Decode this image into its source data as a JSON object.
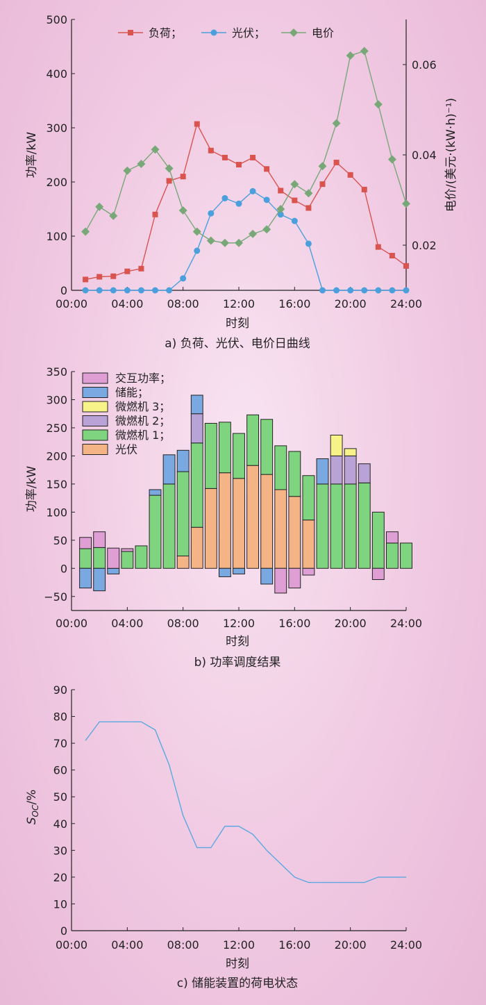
{
  "chart_data": [
    {
      "type": "line",
      "caption": "a) 负荷、光伏、电价日曲线",
      "xlabel": "时刻",
      "ylabel_left": "功率/kW",
      "ylabel_right": "电价/(美元·(kW·h)⁻¹)",
      "x_ticks": [
        "00:00",
        "04:00",
        "08:00",
        "12:00",
        "16:00",
        "20:00",
        "24:00"
      ],
      "y_ticks": [
        "0",
        "100",
        "200",
        "300",
        "400",
        "500"
      ],
      "y2_ticks": [
        "0.02",
        "0.04",
        "0.06"
      ],
      "ylim": [
        0,
        500
      ],
      "y2lim": [
        0.01,
        0.07
      ],
      "legend_position": "top",
      "hours": [
        1,
        2,
        3,
        4,
        5,
        6,
        7,
        8,
        9,
        10,
        11,
        12,
        13,
        14,
        15,
        16,
        17,
        18,
        19,
        20,
        21,
        22,
        23,
        24
      ],
      "series": [
        {
          "name": "负荷；",
          "axis": "left",
          "color": "#d9534f",
          "marker": "square",
          "values": [
            20,
            25,
            26,
            35,
            40,
            140,
            202,
            210,
            307,
            258,
            245,
            232,
            245,
            224,
            184,
            166,
            152,
            196,
            236,
            213,
            186,
            80,
            64,
            45
          ]
        },
        {
          "name": "光伏；",
          "axis": "left",
          "color": "#4a9fdc",
          "marker": "circle",
          "values": [
            0,
            0,
            0,
            0,
            0,
            0,
            0,
            22,
            73,
            142,
            170,
            160,
            183,
            167,
            140,
            128,
            86,
            0,
            0,
            0,
            0,
            0,
            0,
            0
          ]
        },
        {
          "name": "电价",
          "axis": "right",
          "color": "#78a878",
          "marker": "diamond",
          "values": [
            0.023,
            0.0285,
            0.0265,
            0.0365,
            0.038,
            0.0412,
            0.037,
            0.0277,
            0.023,
            0.021,
            0.0205,
            0.0205,
            0.0225,
            0.0235,
            0.028,
            0.0335,
            0.0315,
            0.0375,
            0.047,
            0.062,
            0.063,
            0.0512,
            0.039,
            0.0292
          ]
        }
      ]
    },
    {
      "type": "bar",
      "stacked": true,
      "caption": "b) 功率调度结果",
      "xlabel": "时刻",
      "ylabel": "功率/kW",
      "x_ticks": [
        "00:00",
        "04:00",
        "08:00",
        "12:00",
        "16:00",
        "20:00",
        "24:00"
      ],
      "y_ticks": [
        "−50",
        "0",
        "50",
        "100",
        "150",
        "200",
        "250",
        "300",
        "350"
      ],
      "ylim": [
        -75,
        350
      ],
      "legend_position": "top-left",
      "hours": [
        1,
        2,
        3,
        4,
        5,
        6,
        7,
        8,
        9,
        10,
        11,
        12,
        13,
        14,
        15,
        16,
        17,
        18,
        19,
        20,
        21,
        22,
        23,
        24
      ],
      "series": [
        {
          "name": "光伏",
          "color": "#f5b486",
          "values": [
            0,
            0,
            0,
            0,
            0,
            0,
            0,
            22,
            73,
            142,
            170,
            160,
            183,
            167,
            140,
            128,
            86,
            0,
            0,
            0,
            0,
            0,
            0,
            0
          ]
        },
        {
          "name": "微燃机 1；",
          "color": "#7fd47f",
          "values": [
            35,
            37,
            0,
            30,
            40,
            130,
            150,
            150,
            150,
            116,
            90,
            80,
            90,
            98,
            78,
            80,
            79,
            150,
            150,
            150,
            152,
            100,
            45,
            45
          ]
        },
        {
          "name": "微燃机 2；",
          "color": "#b9a2d6",
          "values": [
            0,
            0,
            0,
            0,
            0,
            0,
            0,
            0,
            52,
            0,
            0,
            0,
            0,
            0,
            0,
            0,
            0,
            0,
            50,
            50,
            34,
            0,
            0,
            0
          ]
        },
        {
          "name": "微燃机 3；",
          "color": "#f7f389",
          "values": [
            0,
            0,
            0,
            0,
            0,
            0,
            0,
            0,
            0,
            0,
            0,
            0,
            0,
            0,
            0,
            0,
            0,
            0,
            37,
            13,
            0,
            0,
            0,
            0
          ]
        },
        {
          "name": "储能；",
          "color": "#7aa8e0",
          "values": [
            -35,
            -40,
            -10,
            0,
            0,
            10,
            52,
            38,
            33,
            0,
            -15,
            -10,
            0,
            -28,
            0,
            0,
            0,
            45,
            0,
            0,
            0,
            0,
            0,
            0
          ]
        },
        {
          "name": "交互功率；",
          "color": "#df9fd5",
          "values": [
            20,
            28,
            36,
            5,
            0,
            0,
            0,
            0,
            0,
            0,
            0,
            0,
            0,
            0,
            -44,
            -35,
            -12,
            0,
            0,
            0,
            0,
            -20,
            20,
            0
          ]
        }
      ]
    },
    {
      "type": "line",
      "caption": "c) 储能装置的荷电状态",
      "xlabel": "时刻",
      "ylabel": "S",
      "ylabel_sub": "OC",
      "ylabel_unit": "/%",
      "x_ticks": [
        "00:00",
        "04:00",
        "08:00",
        "12:00",
        "16:00",
        "20:00",
        "24:00"
      ],
      "y_ticks": [
        "0",
        "10",
        "20",
        "30",
        "40",
        "50",
        "60",
        "70",
        "80",
        "90"
      ],
      "ylim": [
        0,
        90
      ],
      "hours": [
        1,
        2,
        3,
        4,
        5,
        6,
        7,
        8,
        9,
        10,
        11,
        12,
        13,
        14,
        15,
        16,
        17,
        18,
        19,
        20,
        21,
        22,
        23,
        24
      ],
      "series": [
        {
          "color": "#5aa8e0",
          "values": [
            71,
            78,
            78,
            78,
            78,
            75,
            62,
            43,
            31,
            31,
            39,
            39,
            36,
            30,
            25,
            20,
            18,
            18,
            18,
            18,
            18,
            20,
            20,
            20
          ]
        }
      ]
    }
  ]
}
